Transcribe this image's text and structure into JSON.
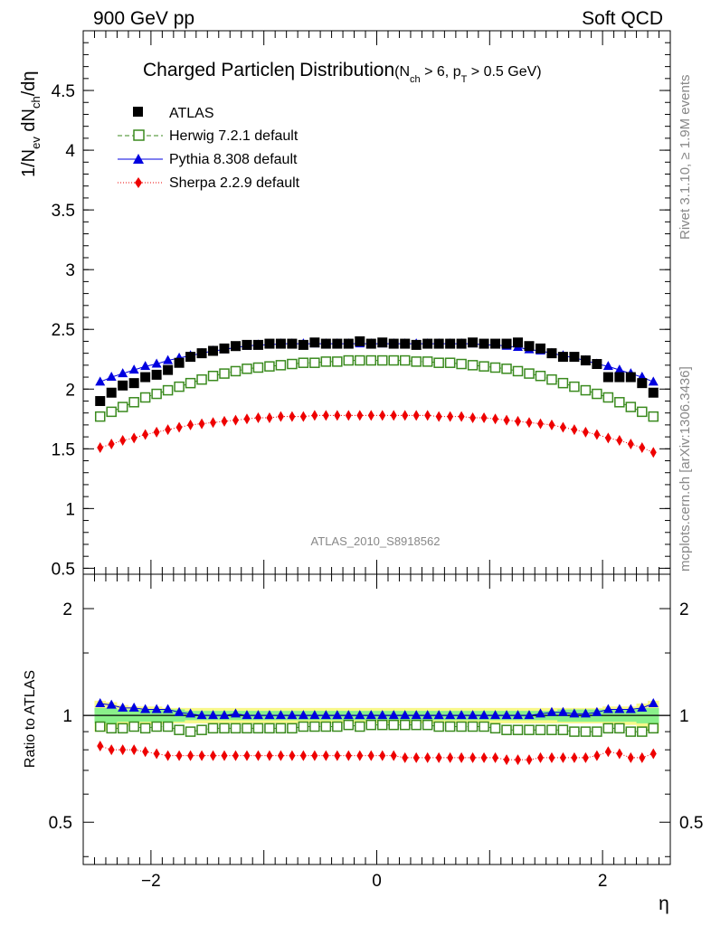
{
  "header": {
    "left": "900 GeV pp",
    "right": "Soft QCD"
  },
  "side_text": {
    "rivet": "Rivet 3.1.10, ≥ 1.9M events",
    "mcplots": "mcplots.cern.ch [arXiv:1306.3436]"
  },
  "colors": {
    "atlas": "#000000",
    "herwig": "#3a8a1e",
    "pythia": "#0000e0",
    "sherpa": "#ee0000",
    "band_inner": "#8af08a",
    "band_outer": "#f8f88a"
  },
  "chart_data": [
    {
      "type": "scatter",
      "title_main": "Charged Particle",
      "title_eta": "η",
      "title_rest": "Distribution",
      "title_sub": "(N",
      "title_sub_ch": "ch",
      "title_sub_mid": " > 6, p",
      "title_sub_T": "T",
      "title_sub_end": " > 0.5 GeV)",
      "analysis_id": "ATLAS_2010_S8918562",
      "ylabel": "1/N",
      "ylabel_ev": "ev",
      "ylabel_mid": " dN",
      "ylabel_ch": "ch",
      "ylabel_end": "/dη",
      "ylim": [
        0.45,
        5.0
      ],
      "xlim": [
        -2.6,
        2.6
      ],
      "y_ticks": [
        "0.5",
        "1",
        "1.5",
        "2",
        "2.5",
        "3",
        "3.5",
        "4",
        "4.5"
      ],
      "x": [
        -2.45,
        -2.35,
        -2.25,
        -2.15,
        -2.05,
        -1.95,
        -1.85,
        -1.75,
        -1.65,
        -1.55,
        -1.45,
        -1.35,
        -1.25,
        -1.15,
        -1.05,
        -0.95,
        -0.85,
        -0.75,
        -0.65,
        -0.55,
        -0.45,
        -0.35,
        -0.25,
        -0.15,
        -0.05,
        0.05,
        0.15,
        0.25,
        0.35,
        0.45,
        0.55,
        0.65,
        0.75,
        0.85,
        0.95,
        1.05,
        1.15,
        1.25,
        1.35,
        1.45,
        1.55,
        1.65,
        1.75,
        1.85,
        1.95,
        2.05,
        2.15,
        2.25,
        2.35,
        2.45
      ],
      "series": [
        {
          "name": "ATLAS",
          "marker": "square-filled",
          "values": [
            1.9,
            1.97,
            2.03,
            2.05,
            2.1,
            2.12,
            2.16,
            2.22,
            2.27,
            2.3,
            2.32,
            2.34,
            2.36,
            2.37,
            2.37,
            2.38,
            2.38,
            2.38,
            2.37,
            2.39,
            2.38,
            2.38,
            2.38,
            2.4,
            2.38,
            2.39,
            2.38,
            2.38,
            2.37,
            2.38,
            2.38,
            2.38,
            2.38,
            2.39,
            2.38,
            2.38,
            2.38,
            2.39,
            2.36,
            2.34,
            2.3,
            2.27,
            2.27,
            2.24,
            2.21,
            2.1,
            2.1,
            2.1,
            2.05,
            1.97
          ]
        },
        {
          "name": "Herwig 7.2.1 default",
          "marker": "square-open",
          "line": "dashed",
          "values": [
            1.77,
            1.81,
            1.85,
            1.89,
            1.93,
            1.96,
            1.99,
            2.02,
            2.05,
            2.08,
            2.11,
            2.13,
            2.15,
            2.17,
            2.18,
            2.19,
            2.2,
            2.21,
            2.22,
            2.22,
            2.23,
            2.23,
            2.24,
            2.24,
            2.24,
            2.24,
            2.24,
            2.24,
            2.23,
            2.23,
            2.22,
            2.22,
            2.21,
            2.2,
            2.19,
            2.18,
            2.17,
            2.15,
            2.13,
            2.11,
            2.08,
            2.05,
            2.02,
            1.99,
            1.96,
            1.93,
            1.89,
            1.85,
            1.81,
            1.77
          ]
        },
        {
          "name": "Pythia 8.308 default",
          "marker": "triangle-filled",
          "line": "solid",
          "values": [
            2.06,
            2.1,
            2.13,
            2.16,
            2.19,
            2.21,
            2.24,
            2.26,
            2.28,
            2.3,
            2.32,
            2.33,
            2.35,
            2.36,
            2.37,
            2.37,
            2.38,
            2.38,
            2.38,
            2.38,
            2.38,
            2.38,
            2.38,
            2.38,
            2.38,
            2.38,
            2.38,
            2.38,
            2.38,
            2.38,
            2.38,
            2.38,
            2.38,
            2.38,
            2.37,
            2.37,
            2.36,
            2.35,
            2.33,
            2.32,
            2.3,
            2.28,
            2.26,
            2.24,
            2.21,
            2.19,
            2.16,
            2.13,
            2.1,
            2.06
          ]
        },
        {
          "name": "Sherpa 2.2.9 default",
          "marker": "diamond-filled",
          "line": "dotted",
          "values": [
            1.51,
            1.54,
            1.57,
            1.59,
            1.62,
            1.64,
            1.66,
            1.68,
            1.7,
            1.71,
            1.72,
            1.73,
            1.74,
            1.75,
            1.76,
            1.76,
            1.77,
            1.77,
            1.77,
            1.78,
            1.78,
            1.78,
            1.78,
            1.78,
            1.78,
            1.78,
            1.78,
            1.78,
            1.78,
            1.78,
            1.77,
            1.77,
            1.77,
            1.76,
            1.76,
            1.75,
            1.74,
            1.73,
            1.72,
            1.71,
            1.7,
            1.68,
            1.66,
            1.64,
            1.62,
            1.59,
            1.57,
            1.54,
            1.51,
            1.47
          ]
        }
      ],
      "legend_position": "top-left"
    },
    {
      "type": "scatter",
      "ylabel": "Ratio to ATLAS",
      "xlabel": "η",
      "ylim": [
        0.38,
        2.5
      ],
      "xlim": [
        -2.6,
        2.6
      ],
      "y_ticks": [
        "0.5",
        "1",
        "2"
      ],
      "x_ticks": [
        "−2",
        "0",
        "2"
      ],
      "x": [
        -2.45,
        -2.35,
        -2.25,
        -2.15,
        -2.05,
        -1.95,
        -1.85,
        -1.75,
        -1.65,
        -1.55,
        -1.45,
        -1.35,
        -1.25,
        -1.15,
        -1.05,
        -0.95,
        -0.85,
        -0.75,
        -0.65,
        -0.55,
        -0.45,
        -0.35,
        -0.25,
        -0.15,
        -0.05,
        0.05,
        0.15,
        0.25,
        0.35,
        0.45,
        0.55,
        0.65,
        0.75,
        0.85,
        0.95,
        1.05,
        1.15,
        1.25,
        1.35,
        1.45,
        1.55,
        1.65,
        1.75,
        1.85,
        1.95,
        2.05,
        2.15,
        2.25,
        2.35,
        2.45
      ],
      "band_inner": [
        0.05,
        0.05,
        0.04,
        0.04,
        0.04,
        0.04,
        0.04,
        0.04,
        0.03,
        0.03,
        0.03,
        0.03,
        0.03,
        0.03,
        0.03,
        0.03,
        0.03,
        0.03,
        0.03,
        0.03,
        0.03,
        0.03,
        0.03,
        0.03,
        0.03,
        0.03,
        0.03,
        0.03,
        0.03,
        0.03,
        0.03,
        0.03,
        0.03,
        0.03,
        0.03,
        0.03,
        0.03,
        0.03,
        0.03,
        0.03,
        0.03,
        0.04,
        0.04,
        0.04,
        0.04,
        0.04,
        0.04,
        0.04,
        0.05,
        0.05
      ],
      "band_outer": [
        0.1,
        0.09,
        0.07,
        0.06,
        0.06,
        0.06,
        0.05,
        0.05,
        0.05,
        0.05,
        0.05,
        0.05,
        0.05,
        0.05,
        0.05,
        0.05,
        0.05,
        0.05,
        0.05,
        0.05,
        0.05,
        0.05,
        0.05,
        0.05,
        0.05,
        0.05,
        0.05,
        0.05,
        0.05,
        0.05,
        0.05,
        0.05,
        0.05,
        0.05,
        0.05,
        0.05,
        0.05,
        0.05,
        0.05,
        0.05,
        0.05,
        0.05,
        0.05,
        0.05,
        0.05,
        0.06,
        0.06,
        0.06,
        0.08,
        0.1
      ],
      "series": [
        {
          "name": "Herwig 7.2.1 default",
          "values": [
            0.93,
            0.92,
            0.92,
            0.93,
            0.92,
            0.93,
            0.93,
            0.91,
            0.9,
            0.91,
            0.92,
            0.92,
            0.92,
            0.92,
            0.92,
            0.92,
            0.92,
            0.92,
            0.93,
            0.93,
            0.93,
            0.93,
            0.94,
            0.93,
            0.94,
            0.94,
            0.94,
            0.94,
            0.94,
            0.94,
            0.93,
            0.93,
            0.93,
            0.93,
            0.93,
            0.92,
            0.91,
            0.91,
            0.91,
            0.91,
            0.91,
            0.91,
            0.9,
            0.9,
            0.9,
            0.92,
            0.92,
            0.9,
            0.9,
            0.92
          ]
        },
        {
          "name": "Pythia 8.308 default",
          "values": [
            1.08,
            1.07,
            1.05,
            1.05,
            1.04,
            1.04,
            1.04,
            1.02,
            1.01,
            1.0,
            1.0,
            1.0,
            1.01,
            1.0,
            1.0,
            1.0,
            1.0,
            1.0,
            1.0,
            1.0,
            1.0,
            1.0,
            1.0,
            1.0,
            1.0,
            1.0,
            1.0,
            1.0,
            1.0,
            1.0,
            1.0,
            1.0,
            1.0,
            1.0,
            1.0,
            1.0,
            1.0,
            1.0,
            1.0,
            1.01,
            1.02,
            1.02,
            1.01,
            1.01,
            1.02,
            1.04,
            1.04,
            1.04,
            1.05,
            1.08
          ]
        },
        {
          "name": "Sherpa 2.2.9 default",
          "values": [
            0.82,
            0.8,
            0.8,
            0.8,
            0.79,
            0.78,
            0.77,
            0.77,
            0.77,
            0.77,
            0.77,
            0.77,
            0.77,
            0.77,
            0.77,
            0.77,
            0.77,
            0.77,
            0.77,
            0.77,
            0.77,
            0.77,
            0.77,
            0.77,
            0.77,
            0.77,
            0.77,
            0.76,
            0.76,
            0.76,
            0.76,
            0.76,
            0.76,
            0.76,
            0.76,
            0.76,
            0.75,
            0.75,
            0.75,
            0.76,
            0.76,
            0.76,
            0.76,
            0.76,
            0.77,
            0.79,
            0.78,
            0.76,
            0.76,
            0.78
          ]
        }
      ]
    }
  ]
}
